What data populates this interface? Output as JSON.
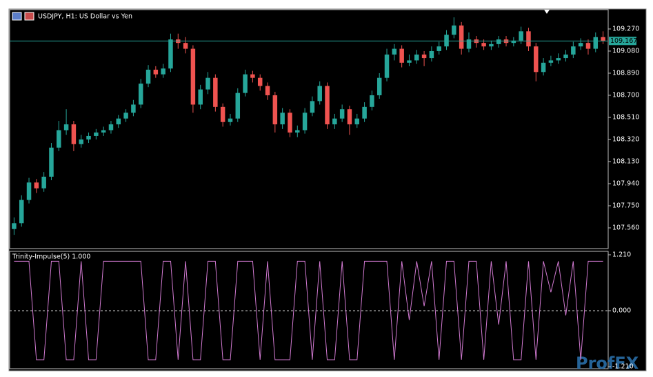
{
  "chart_data": [
    {
      "type": "candlestick",
      "title": "USDJPY, H1:  US Dollar vs Yen",
      "up_color": "#26a69a",
      "down_color": "#ef5350",
      "open": [
        107.55,
        107.6,
        107.8,
        107.95,
        107.9,
        108.0,
        108.25,
        108.4,
        108.45,
        108.28,
        108.32,
        108.35,
        108.38,
        108.4,
        108.45,
        108.5,
        108.55,
        108.62,
        108.8,
        108.92,
        108.88,
        108.93,
        109.18,
        109.15,
        109.1,
        108.62,
        108.75,
        108.85,
        108.6,
        108.47,
        108.5,
        108.72,
        108.88,
        108.85,
        108.78,
        108.7,
        108.45,
        108.55,
        108.38,
        108.4,
        108.55,
        108.65,
        108.78,
        108.45,
        108.5,
        108.58,
        108.45,
        108.5,
        108.6,
        108.7,
        108.85,
        109.05,
        109.1,
        108.98,
        109.0,
        109.05,
        109.02,
        109.08,
        109.12,
        109.22,
        109.3,
        109.1,
        109.18,
        109.15,
        109.12,
        109.14,
        109.18,
        109.15,
        109.17,
        109.25,
        109.12,
        108.9,
        108.98,
        109.0,
        109.02,
        109.05,
        109.12,
        109.15,
        109.1,
        109.2
      ],
      "high": [
        107.65,
        107.84,
        107.99,
        107.98,
        108.04,
        108.29,
        108.48,
        108.58,
        108.48,
        108.36,
        108.38,
        108.41,
        108.43,
        108.48,
        108.53,
        108.58,
        108.66,
        108.84,
        108.96,
        108.95,
        108.97,
        109.23,
        109.23,
        109.2,
        109.13,
        108.79,
        108.9,
        108.88,
        108.63,
        108.54,
        108.76,
        108.92,
        108.91,
        108.88,
        108.81,
        108.73,
        108.59,
        108.58,
        108.44,
        108.59,
        108.69,
        108.82,
        108.81,
        108.54,
        108.62,
        108.61,
        108.54,
        108.64,
        108.74,
        108.89,
        109.1,
        109.14,
        109.13,
        109.05,
        109.09,
        109.08,
        109.12,
        109.16,
        109.26,
        109.37,
        109.33,
        109.24,
        109.21,
        109.18,
        109.17,
        109.21,
        109.21,
        109.2,
        109.29,
        109.28,
        109.15,
        109.02,
        109.04,
        109.06,
        109.09,
        109.16,
        109.19,
        109.18,
        109.24,
        109.25
      ],
      "low": [
        107.5,
        107.57,
        107.77,
        107.86,
        107.87,
        107.97,
        108.22,
        108.36,
        108.22,
        108.25,
        108.29,
        108.32,
        108.35,
        108.37,
        108.42,
        108.47,
        108.52,
        108.59,
        108.77,
        108.85,
        108.85,
        108.9,
        109.1,
        109.06,
        108.55,
        108.58,
        108.71,
        108.56,
        108.43,
        108.44,
        108.47,
        108.69,
        108.81,
        108.74,
        108.66,
        108.38,
        108.41,
        108.34,
        108.34,
        108.37,
        108.52,
        108.62,
        108.41,
        108.41,
        108.47,
        108.36,
        108.42,
        108.47,
        108.57,
        108.67,
        108.82,
        109.0,
        108.94,
        108.95,
        108.97,
        108.95,
        108.99,
        109.05,
        109.09,
        109.19,
        109.05,
        109.07,
        109.11,
        109.09,
        109.09,
        109.11,
        109.12,
        109.12,
        109.14,
        109.08,
        108.82,
        108.87,
        108.95,
        108.97,
        108.99,
        109.02,
        109.09,
        109.05,
        109.07,
        109.14
      ],
      "close": [
        107.6,
        107.8,
        107.95,
        107.9,
        108.0,
        108.25,
        108.4,
        108.45,
        108.28,
        108.32,
        108.35,
        108.38,
        108.4,
        108.45,
        108.5,
        108.55,
        108.62,
        108.8,
        108.92,
        108.88,
        108.93,
        109.18,
        109.15,
        109.1,
        108.62,
        108.75,
        108.85,
        108.6,
        108.47,
        108.5,
        108.72,
        108.88,
        108.85,
        108.78,
        108.7,
        108.45,
        108.55,
        108.38,
        108.4,
        108.55,
        108.65,
        108.78,
        108.45,
        108.5,
        108.58,
        108.45,
        108.5,
        108.6,
        108.7,
        108.85,
        109.05,
        109.1,
        108.98,
        109.0,
        109.05,
        109.02,
        109.08,
        109.12,
        109.22,
        109.3,
        109.1,
        109.18,
        109.15,
        109.12,
        109.14,
        109.18,
        109.15,
        109.17,
        109.25,
        109.12,
        108.9,
        108.98,
        109.0,
        109.02,
        109.05,
        109.12,
        109.15,
        109.1,
        109.2,
        109.167
      ],
      "price_line": 109.167,
      "price_line_color": "#26a69a",
      "ylim": [
        107.382,
        109.436
      ],
      "yticks": [
        {
          "value": 109.27,
          "label": "109.270"
        },
        {
          "value": 109.08,
          "label": "109.080"
        },
        {
          "value": 108.89,
          "label": "108.890"
        },
        {
          "value": 108.7,
          "label": "108.700"
        },
        {
          "value": 108.51,
          "label": "108.510"
        },
        {
          "value": 108.32,
          "label": "108.320"
        },
        {
          "value": 108.13,
          "label": "108.130"
        },
        {
          "value": 107.94,
          "label": "107.940"
        },
        {
          "value": 107.75,
          "label": "107.750"
        },
        {
          "value": 107.56,
          "label": "107.560"
        }
      ]
    },
    {
      "type": "line",
      "title": "Trinity-Impulse(5) 1.000",
      "color": "#d27ad2",
      "values": [
        1.07,
        1.07,
        1.07,
        -1.06,
        -1.06,
        1.07,
        1.07,
        -1.06,
        -1.06,
        1.07,
        -1.06,
        -1.06,
        1.07,
        1.07,
        1.07,
        1.07,
        1.07,
        1.07,
        -1.06,
        -1.06,
        1.07,
        1.07,
        -1.06,
        1.07,
        -1.06,
        -1.06,
        1.07,
        1.07,
        -1.06,
        -1.06,
        1.07,
        1.07,
        1.07,
        -1.06,
        1.07,
        -1.06,
        -1.06,
        -1.06,
        1.07,
        1.07,
        -1.06,
        1.07,
        -1.06,
        -1.06,
        1.07,
        -1.06,
        -1.06,
        1.07,
        1.07,
        1.07,
        1.07,
        -1.06,
        1.07,
        -0.2,
        1.07,
        0.1,
        1.07,
        -1.06,
        1.07,
        1.07,
        -1.06,
        1.07,
        1.07,
        -1.06,
        1.07,
        -0.3,
        1.07,
        -1.06,
        -1.06,
        1.07,
        -1.06,
        1.07,
        0.4,
        1.07,
        -0.1,
        1.07,
        -1.06,
        1.07,
        1.07,
        1.07
      ],
      "ylim": [
        -1.21,
        1.21
      ],
      "levels": [
        0
      ],
      "yticks": [
        {
          "value": 1.21,
          "label": "1.210"
        },
        {
          "value": 0,
          "label": "0.000"
        },
        {
          "value": -1.21,
          "label": "-1.210"
        }
      ]
    }
  ],
  "watermark": "ProfFX"
}
